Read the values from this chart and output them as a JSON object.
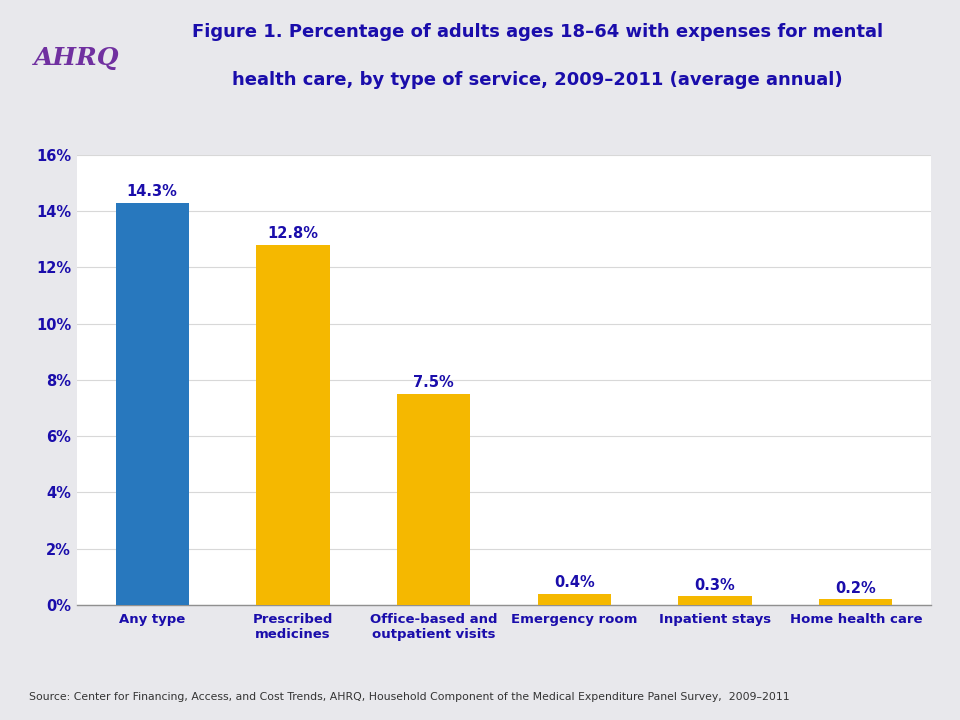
{
  "categories": [
    "Any type",
    "Prescribed\nmedicines",
    "Office-based and\noutpatient visits",
    "Emergency room",
    "Inpatient stays",
    "Home health care"
  ],
  "values": [
    14.3,
    12.8,
    7.5,
    0.4,
    0.3,
    0.2
  ],
  "bar_colors": [
    "#2878BE",
    "#F5B800",
    "#F5B800",
    "#F5B800",
    "#F5B800",
    "#F5B800"
  ],
  "labels": [
    "14.3%",
    "12.8%",
    "7.5%",
    "0.4%",
    "0.3%",
    "0.2%"
  ],
  "title_line1": "Figure 1. Percentage of adults ages 18–64 with expenses for mental",
  "title_line2": "health care, by type of service, 2009–2011 (average annual)",
  "title_color": "#1A0DAB",
  "ylim": [
    0,
    16
  ],
  "yticks": [
    0,
    2,
    4,
    6,
    8,
    10,
    12,
    14,
    16
  ],
  "ytick_labels": [
    "0%",
    "2%",
    "4%",
    "6%",
    "8%",
    "10%",
    "12%",
    "14%",
    "16%"
  ],
  "source_text": "Source: Center for Financing, Access, and Cost Trends, AHRQ, Household Component of the Medical Expenditure Panel Survey,  2009–2011",
  "background_color": "#E8E8EC",
  "plot_background": "#FFFFFF",
  "bar_label_color": "#1A0DAB",
  "tick_color": "#1A0DAB",
  "separator_color": "#A0A0B0",
  "grid_color": "#D8D8D8"
}
